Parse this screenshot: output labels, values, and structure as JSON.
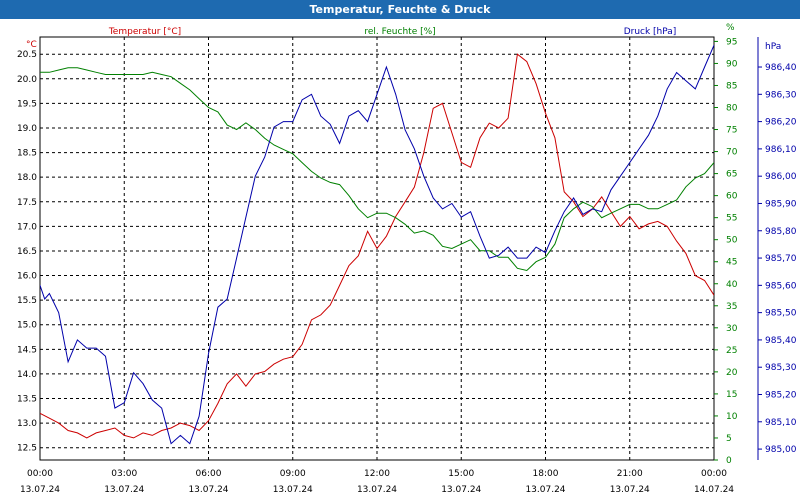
{
  "chart_title": "Temperatur, Feuchte & Druck",
  "colors": {
    "temperature": "#cc0000",
    "humidity": "#008000",
    "pressure": "#0000aa",
    "title_bar": "#1e6ab0",
    "text": "#000000"
  },
  "chart_data": {
    "type": "line",
    "title": "Temperatur, Feuchte & Druck",
    "x_start": "2024-07-13 00:00",
    "x_end": "2024-07-14 00:00",
    "x_ticks": [
      {
        "time": "00:00",
        "date": "13.07.24"
      },
      {
        "time": "03:00",
        "date": "13.07.24"
      },
      {
        "time": "06:00",
        "date": "13.07.24"
      },
      {
        "time": "09:00",
        "date": "13.07.24"
      },
      {
        "time": "12:00",
        "date": "13.07.24"
      },
      {
        "time": "15:00",
        "date": "13.07.24"
      },
      {
        "time": "18:00",
        "date": "13.07.24"
      },
      {
        "time": "21:00",
        "date": "13.07.24"
      },
      {
        "time": "00:00",
        "date": "14.07.24"
      }
    ],
    "grid": true,
    "axes": {
      "temperature": {
        "label": "Temperatur [°C]",
        "unit": "°C",
        "ylim": [
          12.25,
          20.85
        ],
        "ticks": [
          "12.5",
          "13.0",
          "13.5",
          "14.0",
          "14.5",
          "15.0",
          "15.5",
          "16.0",
          "16.5",
          "17.0",
          "17.5",
          "18.0",
          "18.5",
          "19.0",
          "19.5",
          "20.0",
          "20.5"
        ]
      },
      "humidity": {
        "label": "rel. Feuchte [%]",
        "unit": "%",
        "ylim": [
          0,
          96
        ],
        "ticks": [
          "0",
          "5",
          "10",
          "15",
          "20",
          "25",
          "30",
          "35",
          "40",
          "45",
          "50",
          "55",
          "60",
          "65",
          "70",
          "75",
          "80",
          "85",
          "90",
          "95"
        ]
      },
      "pressure": {
        "label": "Druck [hPa]",
        "unit": "hPa",
        "ylim": [
          984.96,
          986.51
        ],
        "ticks": [
          "985,00",
          "985,10",
          "985,20",
          "985,30",
          "985,40",
          "985,50",
          "985,60",
          "985,70",
          "985,80",
          "985,90",
          "986,00",
          "986,10",
          "986,20",
          "986,30",
          "986,40"
        ]
      }
    },
    "series": [
      {
        "name": "Temperatur [°C]",
        "axis": "temperature",
        "color": "#cc0000",
        "points": [
          [
            "00:00",
            13.2
          ],
          [
            "00:20",
            13.1
          ],
          [
            "00:40",
            13.0
          ],
          [
            "01:00",
            12.85
          ],
          [
            "01:20",
            12.8
          ],
          [
            "01:40",
            12.7
          ],
          [
            "02:00",
            12.8
          ],
          [
            "02:20",
            12.85
          ],
          [
            "02:40",
            12.9
          ],
          [
            "03:00",
            12.75
          ],
          [
            "03:20",
            12.7
          ],
          [
            "03:40",
            12.8
          ],
          [
            "04:00",
            12.75
          ],
          [
            "04:20",
            12.85
          ],
          [
            "04:40",
            12.9
          ],
          [
            "05:00",
            13.0
          ],
          [
            "05:20",
            12.95
          ],
          [
            "05:40",
            12.85
          ],
          [
            "06:00",
            13.05
          ],
          [
            "06:20",
            13.4
          ],
          [
            "06:40",
            13.8
          ],
          [
            "07:00",
            14.0
          ],
          [
            "07:20",
            13.75
          ],
          [
            "07:40",
            14.0
          ],
          [
            "08:00",
            14.05
          ],
          [
            "08:20",
            14.2
          ],
          [
            "08:40",
            14.3
          ],
          [
            "09:00",
            14.35
          ],
          [
            "09:20",
            14.6
          ],
          [
            "09:40",
            15.1
          ],
          [
            "10:00",
            15.2
          ],
          [
            "10:20",
            15.4
          ],
          [
            "10:40",
            15.8
          ],
          [
            "11:00",
            16.2
          ],
          [
            "11:20",
            16.4
          ],
          [
            "11:40",
            16.9
          ],
          [
            "12:00",
            16.55
          ],
          [
            "12:20",
            16.8
          ],
          [
            "12:40",
            17.2
          ],
          [
            "13:00",
            17.5
          ],
          [
            "13:20",
            17.8
          ],
          [
            "13:40",
            18.5
          ],
          [
            "14:00",
            19.4
          ],
          [
            "14:20",
            19.5
          ],
          [
            "14:40",
            18.9
          ],
          [
            "15:00",
            18.3
          ],
          [
            "15:20",
            18.2
          ],
          [
            "15:40",
            18.8
          ],
          [
            "16:00",
            19.1
          ],
          [
            "16:20",
            19.0
          ],
          [
            "16:40",
            19.2
          ],
          [
            "17:00",
            20.5
          ],
          [
            "17:20",
            20.35
          ],
          [
            "17:40",
            19.9
          ],
          [
            "18:00",
            19.3
          ],
          [
            "18:20",
            18.8
          ],
          [
            "18:40",
            17.7
          ],
          [
            "19:00",
            17.5
          ],
          [
            "19:20",
            17.2
          ],
          [
            "19:40",
            17.35
          ],
          [
            "20:00",
            17.6
          ],
          [
            "20:20",
            17.3
          ],
          [
            "20:40",
            17.0
          ],
          [
            "21:00",
            17.2
          ],
          [
            "21:20",
            16.95
          ],
          [
            "21:40",
            17.05
          ],
          [
            "22:00",
            17.1
          ],
          [
            "22:20",
            17.0
          ],
          [
            "22:40",
            16.7
          ],
          [
            "23:00",
            16.45
          ],
          [
            "23:20",
            16.0
          ],
          [
            "23:40",
            15.9
          ],
          [
            "24:00",
            15.6
          ]
        ]
      },
      {
        "name": "rel. Feuchte [%]",
        "axis": "humidity",
        "color": "#008000",
        "points": [
          [
            "00:00",
            88
          ],
          [
            "00:20",
            88
          ],
          [
            "00:40",
            88.5
          ],
          [
            "01:00",
            89
          ],
          [
            "01:20",
            89
          ],
          [
            "01:40",
            88.5
          ],
          [
            "02:00",
            88
          ],
          [
            "02:20",
            87.5
          ],
          [
            "02:40",
            87.5
          ],
          [
            "03:00",
            87.5
          ],
          [
            "03:20",
            87.5
          ],
          [
            "03:40",
            87.5
          ],
          [
            "04:00",
            88
          ],
          [
            "04:20",
            87.5
          ],
          [
            "04:40",
            87
          ],
          [
            "05:00",
            85.5
          ],
          [
            "05:20",
            84
          ],
          [
            "05:40",
            82
          ],
          [
            "06:00",
            80
          ],
          [
            "06:20",
            79
          ],
          [
            "06:40",
            76
          ],
          [
            "07:00",
            75
          ],
          [
            "07:20",
            76.5
          ],
          [
            "07:40",
            75
          ],
          [
            "08:00",
            73
          ],
          [
            "08:20",
            71.5
          ],
          [
            "08:40",
            70.5
          ],
          [
            "09:00",
            69.5
          ],
          [
            "09:20",
            67.5
          ],
          [
            "09:40",
            65.5
          ],
          [
            "10:00",
            64
          ],
          [
            "10:20",
            63
          ],
          [
            "10:40",
            62.5
          ],
          [
            "11:00",
            60
          ],
          [
            "11:20",
            57
          ],
          [
            "11:40",
            55
          ],
          [
            "12:00",
            56
          ],
          [
            "12:20",
            56
          ],
          [
            "12:40",
            55
          ],
          [
            "13:00",
            53.5
          ],
          [
            "13:20",
            51.5
          ],
          [
            "13:40",
            52
          ],
          [
            "14:00",
            51
          ],
          [
            "14:20",
            48.5
          ],
          [
            "14:40",
            48
          ],
          [
            "15:00",
            49
          ],
          [
            "15:20",
            50
          ],
          [
            "15:40",
            47.5
          ],
          [
            "16:00",
            47.5
          ],
          [
            "16:20",
            46
          ],
          [
            "16:40",
            46
          ],
          [
            "17:00",
            43.5
          ],
          [
            "17:20",
            43
          ],
          [
            "17:40",
            45
          ],
          [
            "18:00",
            46
          ],
          [
            "18:20",
            49
          ],
          [
            "18:40",
            55
          ],
          [
            "19:00",
            57
          ],
          [
            "19:20",
            58.5
          ],
          [
            "19:40",
            57.5
          ],
          [
            "20:00",
            55
          ],
          [
            "20:20",
            56
          ],
          [
            "20:40",
            57
          ],
          [
            "21:00",
            58
          ],
          [
            "21:20",
            58
          ],
          [
            "21:40",
            57
          ],
          [
            "22:00",
            57
          ],
          [
            "22:20",
            58
          ],
          [
            "22:40",
            59
          ],
          [
            "23:00",
            62
          ],
          [
            "23:20",
            64
          ],
          [
            "23:40",
            65
          ],
          [
            "24:00",
            67.5
          ]
        ]
      },
      {
        "name": "Druck [hPa]",
        "axis": "pressure",
        "color": "#0000aa",
        "points": [
          [
            "00:00",
            985.6
          ],
          [
            "00:10",
            985.55
          ],
          [
            "00:20",
            985.57
          ],
          [
            "00:40",
            985.5
          ],
          [
            "01:00",
            985.32
          ],
          [
            "01:20",
            985.4
          ],
          [
            "01:40",
            985.37
          ],
          [
            "02:00",
            985.37
          ],
          [
            "02:20",
            985.34
          ],
          [
            "02:40",
            985.15
          ],
          [
            "03:00",
            985.17
          ],
          [
            "03:20",
            985.28
          ],
          [
            "03:40",
            985.24
          ],
          [
            "04:00",
            985.18
          ],
          [
            "04:20",
            985.15
          ],
          [
            "04:40",
            985.02
          ],
          [
            "05:00",
            985.05
          ],
          [
            "05:20",
            985.02
          ],
          [
            "05:40",
            985.12
          ],
          [
            "06:00",
            985.35
          ],
          [
            "06:20",
            985.52
          ],
          [
            "06:40",
            985.55
          ],
          [
            "07:00",
            985.7
          ],
          [
            "07:20",
            985.85
          ],
          [
            "07:40",
            986.0
          ],
          [
            "08:00",
            986.07
          ],
          [
            "08:20",
            986.18
          ],
          [
            "08:40",
            986.2
          ],
          [
            "09:00",
            986.2
          ],
          [
            "09:20",
            986.28
          ],
          [
            "09:40",
            986.3
          ],
          [
            "10:00",
            986.22
          ],
          [
            "10:20",
            986.19
          ],
          [
            "10:40",
            986.12
          ],
          [
            "11:00",
            986.22
          ],
          [
            "11:20",
            986.24
          ],
          [
            "11:40",
            986.2
          ],
          [
            "12:00",
            986.3
          ],
          [
            "12:20",
            986.4
          ],
          [
            "12:40",
            986.3
          ],
          [
            "13:00",
            986.17
          ],
          [
            "13:20",
            986.1
          ],
          [
            "13:40",
            986.0
          ],
          [
            "14:00",
            985.92
          ],
          [
            "14:20",
            985.88
          ],
          [
            "14:40",
            985.9
          ],
          [
            "15:00",
            985.85
          ],
          [
            "15:20",
            985.87
          ],
          [
            "15:40",
            985.78
          ],
          [
            "16:00",
            985.7
          ],
          [
            "16:20",
            985.71
          ],
          [
            "16:40",
            985.74
          ],
          [
            "17:00",
            985.7
          ],
          [
            "17:20",
            985.7
          ],
          [
            "17:40",
            985.74
          ],
          [
            "18:00",
            985.72
          ],
          [
            "18:20",
            985.8
          ],
          [
            "18:40",
            985.87
          ],
          [
            "19:00",
            985.92
          ],
          [
            "19:20",
            985.86
          ],
          [
            "19:40",
            985.88
          ],
          [
            "20:00",
            985.87
          ],
          [
            "20:20",
            985.95
          ],
          [
            "20:40",
            986.0
          ],
          [
            "21:00",
            986.05
          ],
          [
            "21:20",
            986.1
          ],
          [
            "21:40",
            986.15
          ],
          [
            "22:00",
            986.22
          ],
          [
            "22:20",
            986.32
          ],
          [
            "22:40",
            986.38
          ],
          [
            "23:00",
            986.35
          ],
          [
            "23:20",
            986.32
          ],
          [
            "23:40",
            986.4
          ],
          [
            "24:00",
            986.48
          ]
        ]
      }
    ]
  }
}
